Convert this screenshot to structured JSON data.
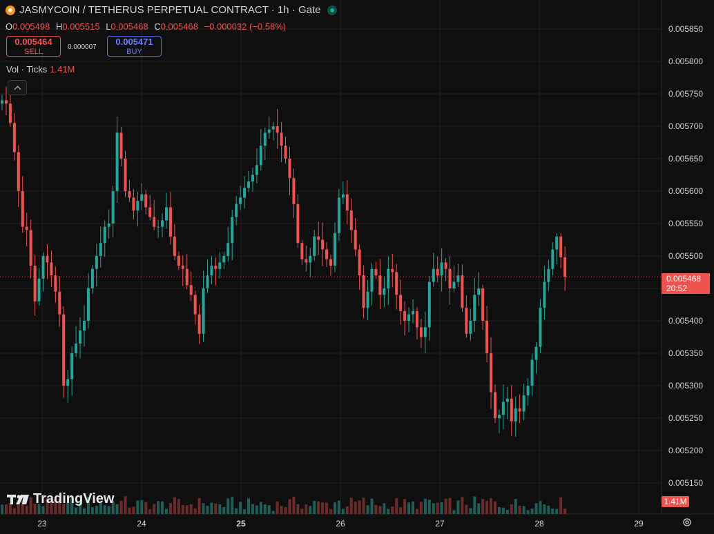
{
  "header": {
    "title": "JASMYCOIN / TETHERUS PERPETUAL CONTRACT · 1h · Gate",
    "ohlc": [
      {
        "k": "O",
        "v": "0.005498"
      },
      {
        "k": "H",
        "v": "0.005515"
      },
      {
        "k": "L",
        "v": "0.005468"
      },
      {
        "k": "C",
        "v": "0.005468"
      }
    ],
    "change": "−0.000032 (−0.58%)"
  },
  "trade": {
    "sell_price": "0.005464",
    "sell_label": "SELL",
    "spread": "0.000007",
    "buy_price": "0.005471",
    "buy_label": "BUY"
  },
  "volume_legend": {
    "label": "Vol · Ticks",
    "value": "1.41M"
  },
  "last_price": {
    "value": "0.005468",
    "countdown": "20:52"
  },
  "volume_tag": "1.41M",
  "branding": {
    "name": "TradingView"
  },
  "icons": {
    "settings": "gear-icon",
    "collapse": "chevron-up-icon",
    "exchange": "coin-icon",
    "live": "live-dot-icon"
  },
  "colors": {
    "up": "#26a69a",
    "down": "#ef5350",
    "up_volume": "#1f5e58",
    "down_volume": "#6b2b2b",
    "background": "#0f0f0f",
    "grid": "#1f1f1f"
  },
  "chart_data": {
    "type": "candlestick",
    "interval": "1h",
    "x_ticks": [
      {
        "label": "23",
        "bold": false
      },
      {
        "label": "24",
        "bold": false
      },
      {
        "label": "25",
        "bold": true
      },
      {
        "label": "26",
        "bold": false
      },
      {
        "label": "27",
        "bold": false
      },
      {
        "label": "28",
        "bold": false
      },
      {
        "label": "29",
        "bold": false
      }
    ],
    "y_ticks": [
      "0.005850",
      "0.005800",
      "0.005750",
      "0.005700",
      "0.005650",
      "0.005600",
      "0.005550",
      "0.005500",
      "0.005450",
      "0.005400",
      "0.005350",
      "0.005300",
      "0.005250",
      "0.005200",
      "0.005150"
    ],
    "ylim": [
      0.00513,
      0.00587
    ],
    "close_path": [
      0.00574,
      0.005735,
      0.005705,
      0.00566,
      0.0056,
      0.005545,
      0.00554,
      0.005485,
      0.00543,
      0.005465,
      0.0055,
      0.00549,
      0.00547,
      0.005445,
      0.00541,
      0.0053,
      0.00531,
      0.00535,
      0.005365,
      0.005385,
      0.0054,
      0.00545,
      0.00548,
      0.0055,
      0.00552,
      0.005545,
      0.00555,
      0.0056,
      0.00569,
      0.00565,
      0.0056,
      0.00559,
      0.00557,
      0.005585,
      0.005595,
      0.005575,
      0.00556,
      0.005545,
      0.005545,
      0.005555,
      0.005575,
      0.00553,
      0.0055,
      0.005485,
      0.00548,
      0.005455,
      0.00544,
      0.00541,
      0.00538,
      0.00545,
      0.00547,
      0.005485,
      0.00548,
      0.00549,
      0.0055,
      0.00552,
      0.00556,
      0.00558,
      0.00559,
      0.005605,
      0.005615,
      0.005625,
      0.00564,
      0.00567,
      0.00569,
      0.005695,
      0.0057,
      0.00569,
      0.00567,
      0.00565,
      0.00562,
      0.00558,
      0.00552,
      0.005495,
      0.00549,
      0.0055,
      0.00553,
      0.005525,
      0.00551,
      0.005495,
      0.005485,
      0.005535,
      0.00559,
      0.005595,
      0.00557,
      0.00554,
      0.00551,
      0.00547,
      0.00542,
      0.005445,
      0.00548,
      0.00547,
      0.00544,
      0.00545,
      0.00548,
      0.005475,
      0.00544,
      0.005415,
      0.0054,
      0.00541,
      0.005415,
      0.00539,
      0.005375,
      0.00539,
      0.00546,
      0.00548,
      0.00547,
      0.00549,
      0.00548,
      0.00545,
      0.00546,
      0.00547,
      0.00542,
      0.00538,
      0.0054,
      0.00544,
      0.00545,
      0.0054,
      0.00535,
      0.00529,
      0.00525,
      0.005255,
      0.005275,
      0.00528,
      0.005245,
      0.005265,
      0.00526,
      0.005285,
      0.0053,
      0.00534,
      0.00536,
      0.00542,
      0.00546,
      0.00548,
      0.00551,
      0.00553,
      0.005498,
      0.005468
    ],
    "volume_max": 1.41
  }
}
